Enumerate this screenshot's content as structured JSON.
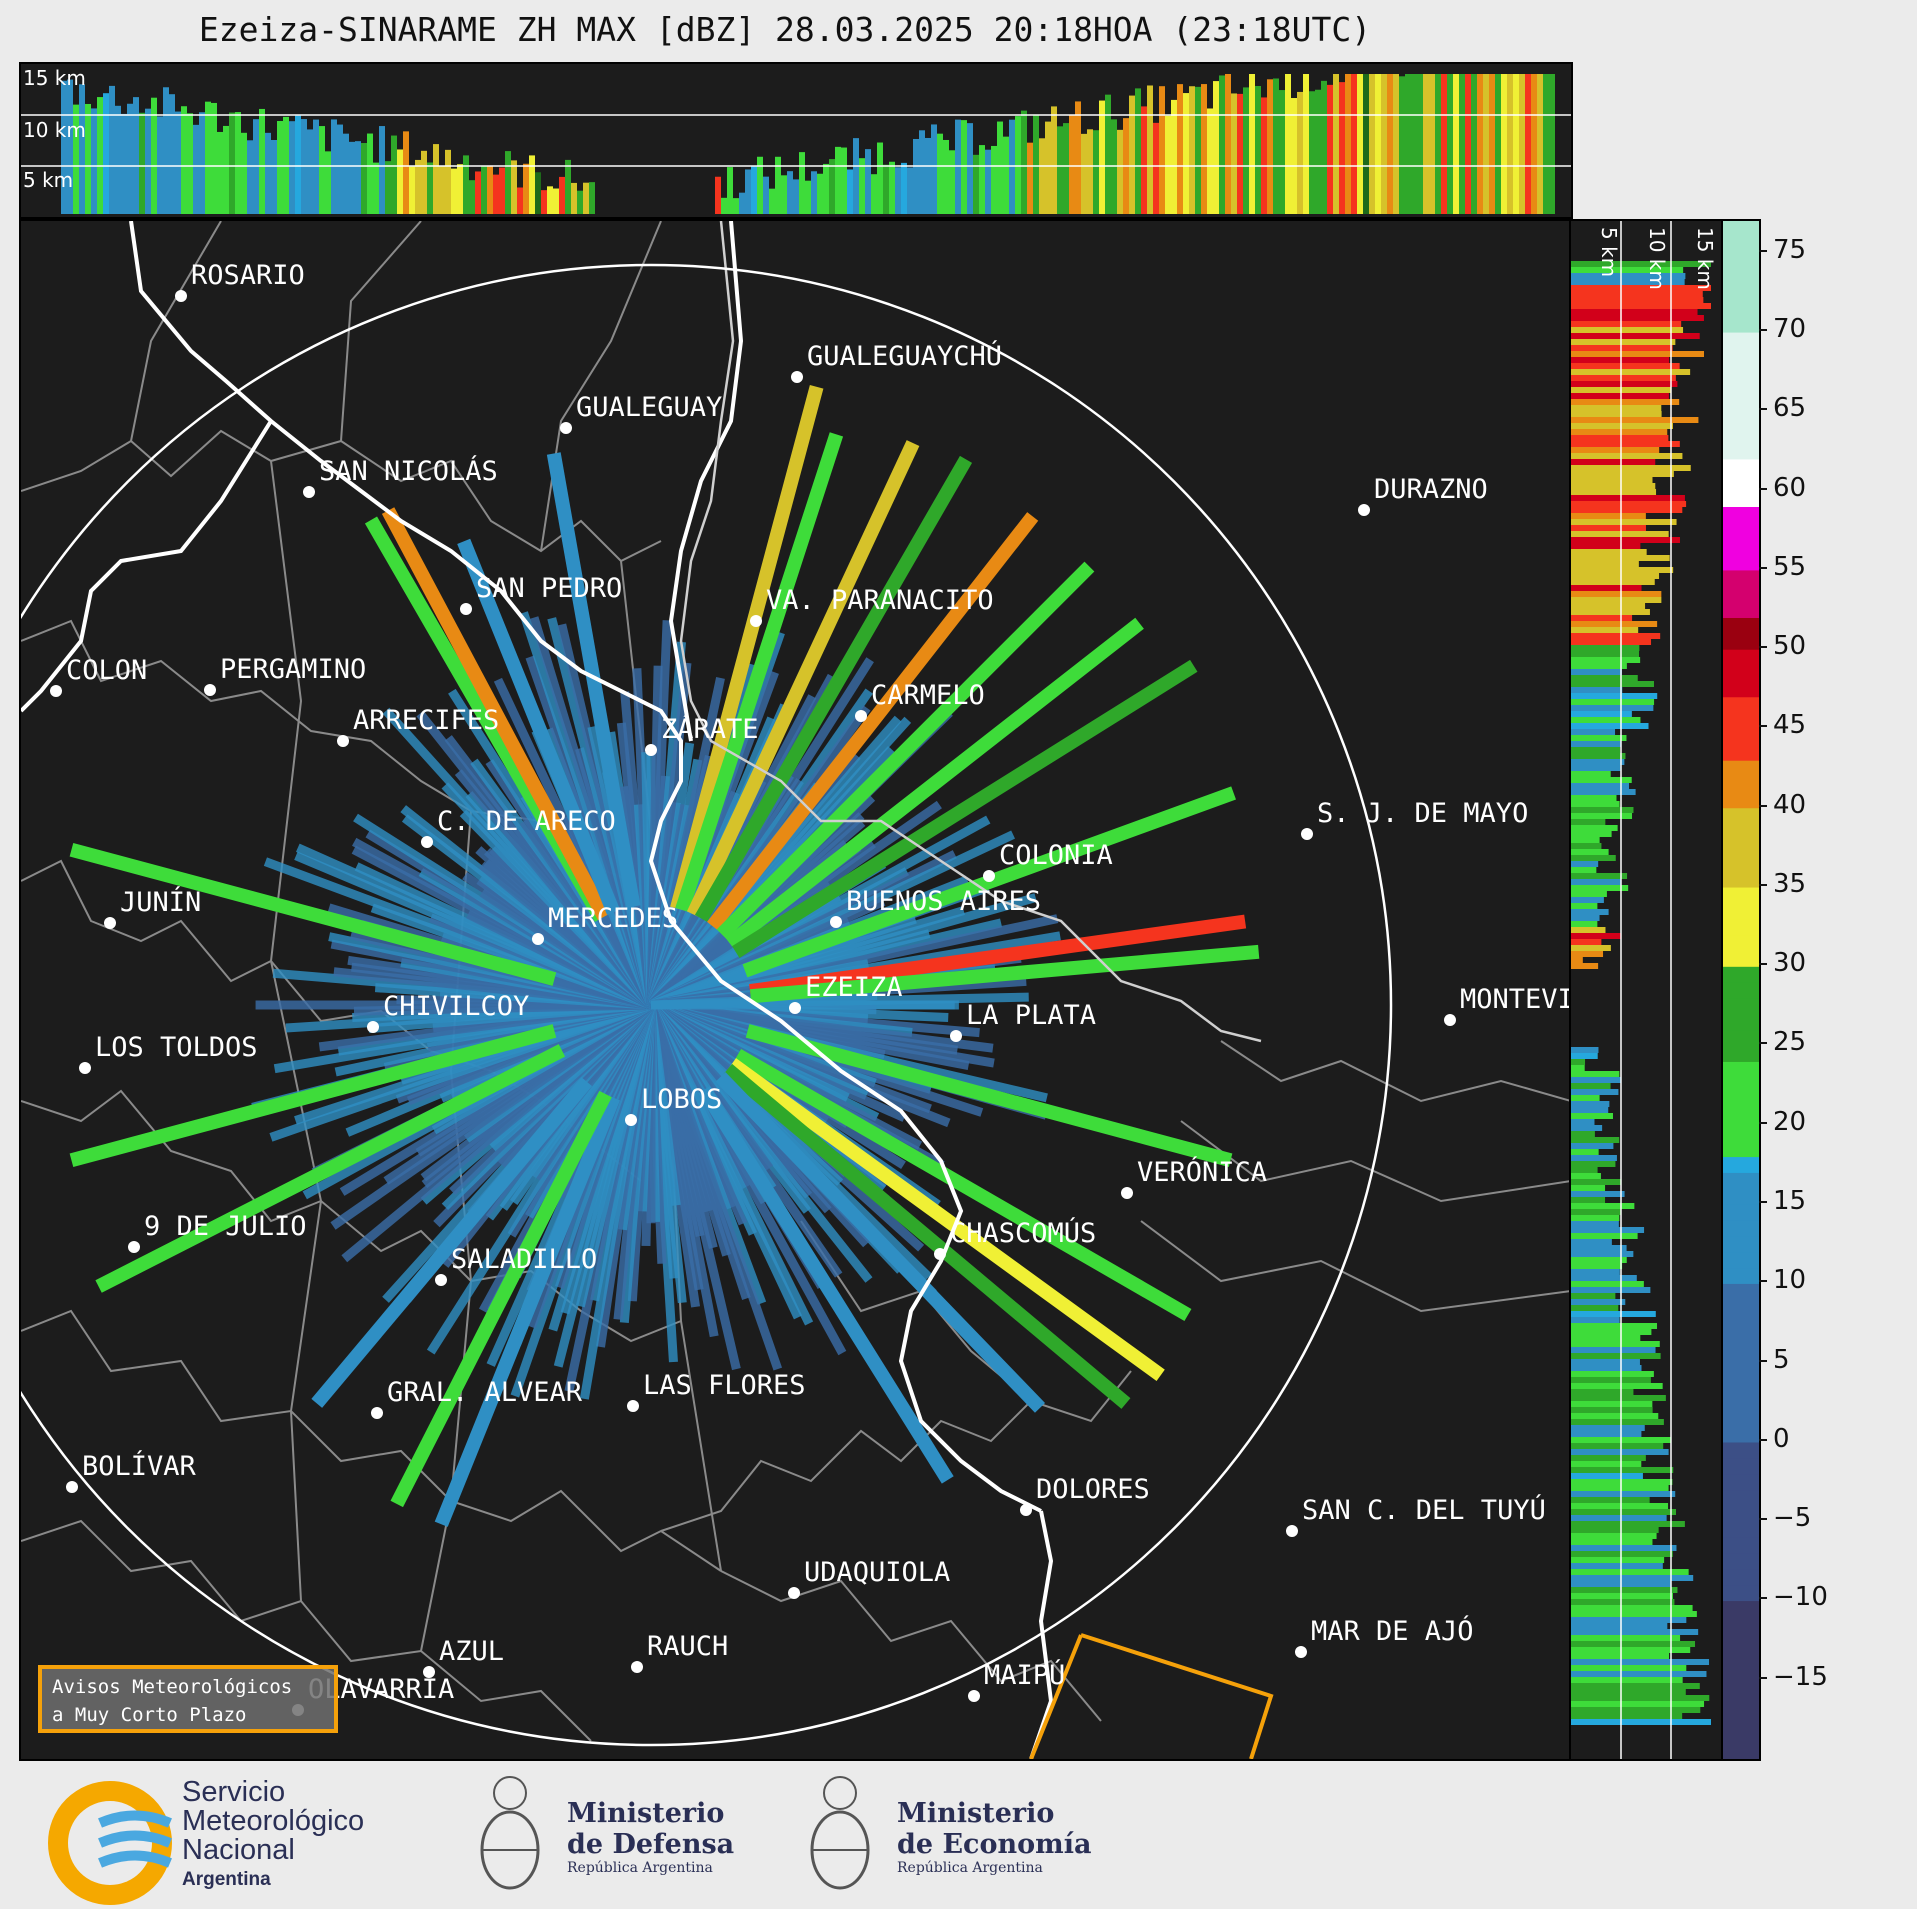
{
  "title": "Ezeiza-SINARAME ZH MAX [dBZ] 28.03.2025 20:18HOA (23:18UTC)",
  "altitude_labels": [
    "15 km",
    "10 km",
    "5 km"
  ],
  "vertical_labels": [
    "5 km",
    "10 km",
    "15 km"
  ],
  "colorbar": {
    "unit": "dBZ",
    "ticks": [
      75,
      70,
      65,
      60,
      55,
      50,
      45,
      40,
      35,
      30,
      25,
      20,
      15,
      10,
      5,
      0,
      -5,
      -10,
      -15
    ],
    "tick_labels": [
      "75",
      "70",
      "65",
      "60",
      "55",
      "50",
      "45",
      "40",
      "35",
      "30",
      "25",
      "20",
      "15",
      "10",
      "5",
      "0",
      "−5",
      "−10",
      "−15"
    ],
    "min": -20,
    "max": 77,
    "stops": [
      {
        "v": -20,
        "c": "#3a3a66"
      },
      {
        "v": -10,
        "c": "#3c4f86"
      },
      {
        "v": 0,
        "c": "#3a6ea8"
      },
      {
        "v": 10,
        "c": "#2f8fc4"
      },
      {
        "v": 17,
        "c": "#25a8de"
      },
      {
        "v": 18,
        "c": "#3edc3a"
      },
      {
        "v": 24,
        "c": "#2fa82a"
      },
      {
        "v": 29.9,
        "c": "#1e6a1a"
      },
      {
        "v": 30,
        "c": "#f0f035"
      },
      {
        "v": 35,
        "c": "#d6c22a"
      },
      {
        "v": 40,
        "c": "#e88a14"
      },
      {
        "v": 43,
        "c": "#f5341e"
      },
      {
        "v": 47,
        "c": "#d2001a"
      },
      {
        "v": 50,
        "c": "#9a0010"
      },
      {
        "v": 52,
        "c": "#d4006e"
      },
      {
        "v": 55,
        "c": "#f000e0"
      },
      {
        "v": 59,
        "c": "#8a10a0"
      },
      {
        "v": 59.5,
        "c": "#ffffff"
      },
      {
        "v": 62,
        "c": "#e0f4ee"
      },
      {
        "v": 70,
        "c": "#a6e6cc"
      },
      {
        "v": 77,
        "c": "#78dcb6"
      }
    ]
  },
  "cities": [
    {
      "name": "ROSARIO"
    },
    {
      "name": "GUALEGUAYCHÚ"
    },
    {
      "name": "GUALEGUAY"
    },
    {
      "name": "SAN NICOLÁS"
    },
    {
      "name": "DURAZNO"
    },
    {
      "name": "SAN PEDRO"
    },
    {
      "name": "VA. PARANACITO"
    },
    {
      "name": "COLON"
    },
    {
      "name": "PERGAMINO"
    },
    {
      "name": "CARMELO"
    },
    {
      "name": "ARRECIFES"
    },
    {
      "name": "ZÁRATE"
    },
    {
      "name": "S. J. DE MAYO"
    },
    {
      "name": "C. DE ARECO"
    },
    {
      "name": "COLONIA"
    },
    {
      "name": "JUNÍN"
    },
    {
      "name": "BUENOS AIRES"
    },
    {
      "name": "MERCEDES"
    },
    {
      "name": "MONTEVIDEO"
    },
    {
      "name": "EZEIZA"
    },
    {
      "name": "CHIVILCOY"
    },
    {
      "name": "LA PLATA"
    },
    {
      "name": "LOS TOLDOS"
    },
    {
      "name": "LOBOS"
    },
    {
      "name": "VERÓNICA"
    },
    {
      "name": "9 DE JULIO"
    },
    {
      "name": "CHASCOMÚS"
    },
    {
      "name": "SALADILLO"
    },
    {
      "name": "GRAL. ALVEAR"
    },
    {
      "name": "LAS FLORES"
    },
    {
      "name": "BOLÍVAR"
    },
    {
      "name": "DOLORES"
    },
    {
      "name": "SAN C. DEL TUYÚ"
    },
    {
      "name": "UDAQUIOLA"
    },
    {
      "name": "MAR DE AJÓ"
    },
    {
      "name": "RAUCH"
    },
    {
      "name": "AZUL"
    },
    {
      "name": "OLAVARRÍA"
    },
    {
      "name": "MAIPÚ"
    }
  ],
  "avisos_lines": [
    "Avisos Meteorológicos",
    "a Muy Corto Plazo"
  ],
  "footer": {
    "smn": [
      "Servicio",
      "Meteorológico",
      "Nacional",
      "Argentina"
    ],
    "defensa": [
      "Ministerio",
      "de Defensa",
      "República Argentina"
    ],
    "economia": [
      "Ministerio",
      "de Economía",
      "República Argentina"
    ]
  },
  "colors": {
    "background": "#ebebeb",
    "map_bg": "#1c1c1c",
    "coast": "#ffffff",
    "border": "#8a8a8a",
    "warning": "#f5a10a"
  }
}
